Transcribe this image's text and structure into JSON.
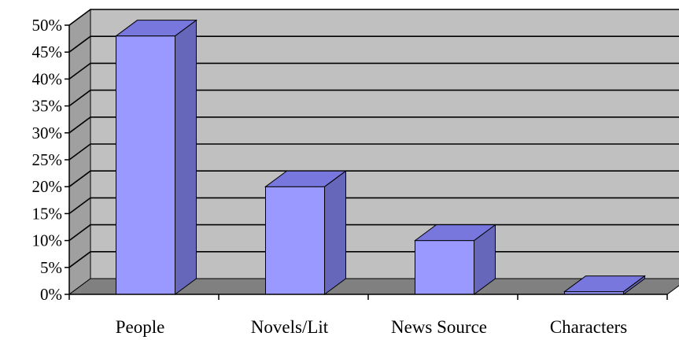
{
  "chart_data": {
    "type": "bar",
    "title": "",
    "xlabel": "",
    "ylabel": "",
    "categories": [
      "People",
      "Novels/Lit",
      "News Source",
      "Characters"
    ],
    "series": [
      {
        "values": [
          48,
          20,
          10,
          0.5
        ]
      }
    ],
    "ylim": [
      0,
      50
    ],
    "ytick_step": 5,
    "ytick_labels": [
      "0%",
      "5%",
      "10%",
      "15%",
      "20%",
      "25%",
      "30%",
      "35%",
      "40%",
      "45%",
      "50%"
    ],
    "grid": true,
    "three_d": true,
    "colors": {
      "bar_front": "#9999ff",
      "bar_side": "#6666bb",
      "bar_top": "#7777dd",
      "wall": "#c0c0c0",
      "floor": "#808080",
      "left_wall": "#a0a0a0",
      "gridline": "#000000"
    }
  }
}
